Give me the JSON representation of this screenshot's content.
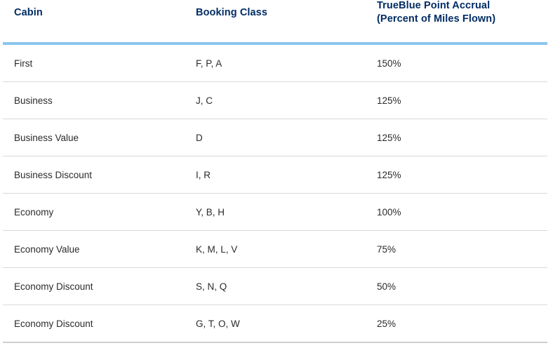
{
  "table": {
    "headers": {
      "cabin": "Cabin",
      "booking_class": "Booking Class",
      "accrual_line1": "TrueBlue Point Accrual",
      "accrual_line2": "(Percent of Miles Flown)"
    },
    "rows": [
      {
        "cabin": "First",
        "booking_class": "F, P, A",
        "accrual": "150%"
      },
      {
        "cabin": "Business",
        "booking_class": "J, C",
        "accrual": "125%"
      },
      {
        "cabin": "Business Value",
        "booking_class": "D",
        "accrual": "125%"
      },
      {
        "cabin": "Business Discount",
        "booking_class": "I, R",
        "accrual": "125%"
      },
      {
        "cabin": "Economy",
        "booking_class": "Y, B, H",
        "accrual": "100%"
      },
      {
        "cabin": "Economy Value",
        "booking_class": "K, M, L, V",
        "accrual": "75%"
      },
      {
        "cabin": "Economy Discount",
        "booking_class": "S, N, Q",
        "accrual": "50%"
      },
      {
        "cabin": "Economy Discount",
        "booking_class": "G, T, O, W",
        "accrual": "25%"
      }
    ]
  },
  "colors": {
    "header_text": "#002c63",
    "header_rule": "#8cc6ec",
    "row_divider": "#d9d9d9",
    "body_text": "#2b2b2b"
  }
}
